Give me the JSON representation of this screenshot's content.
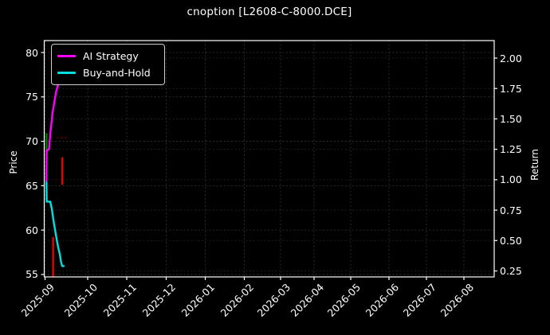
{
  "title": "cnoption [L2608-C-8000.DCE]",
  "legend": {
    "items": [
      {
        "label": "AI Strategy",
        "color": "#ff00ff"
      },
      {
        "label": "Buy-and-Hold",
        "color": "#00e0e0"
      }
    ]
  },
  "axes": {
    "left": {
      "label": "Price",
      "ticks": [
        "80",
        "75",
        "70",
        "65",
        "60",
        "55"
      ]
    },
    "right": {
      "label": "Return",
      "ticks": [
        "2.00",
        "1.75",
        "1.50",
        "1.25",
        "1.00",
        "0.75",
        "0.50",
        "0.25"
      ]
    },
    "x": {
      "ticks": [
        "2025-09",
        "2025-10",
        "2025-11",
        "2025-12",
        "2026-01",
        "2026-02",
        "2026-03",
        "2026-04",
        "2026-05",
        "2026-06",
        "2026-07",
        "2026-08"
      ]
    }
  },
  "chart_data": {
    "type": "line",
    "title": "cnoption [L2608-C-8000.DCE]",
    "ylabel_left": "Price",
    "ylabel_right": "Return",
    "x_axis": "date",
    "x_range": [
      "2025-09-01",
      "2026-08-31"
    ],
    "price_ylim": [
      54.7,
      81.3
    ],
    "return_ylim": [
      0.2,
      2.14
    ],
    "grid": true,
    "legend_position": "upper left",
    "background": "#000000",
    "x_unit": "days since 2025-09-01",
    "series": [
      {
        "name": "AI Strategy",
        "axis": "return",
        "color": "#ff00ff",
        "points": [
          [
            1.0,
            0.99
          ],
          [
            1.2,
            1.24
          ],
          [
            2.8,
            1.25
          ],
          [
            3.7,
            1.38
          ],
          [
            4.5,
            1.46
          ],
          [
            5.3,
            1.55
          ],
          [
            6.2,
            1.61
          ],
          [
            7.0,
            1.67
          ],
          [
            7.9,
            1.73
          ],
          [
            8.7,
            1.76
          ],
          [
            9.6,
            1.8
          ],
          [
            10.7,
            1.84
          ]
        ]
      },
      {
        "name": "Buy-and-Hold",
        "axis": "return",
        "color": "#00e0e0",
        "points": [
          [
            1.0,
            0.99
          ],
          [
            1.2,
            0.82
          ],
          [
            3.7,
            0.82
          ],
          [
            4.8,
            0.76
          ],
          [
            5.9,
            0.67
          ],
          [
            7.0,
            0.59
          ],
          [
            8.2,
            0.51
          ],
          [
            9.3,
            0.44
          ],
          [
            10.4,
            0.39
          ],
          [
            11.2,
            0.33
          ],
          [
            12.1,
            0.29
          ],
          [
            13.2,
            0.29
          ]
        ]
      }
    ],
    "trade_markers": [
      {
        "type": "vline",
        "name": "buy-signal",
        "color": "#008000",
        "day": 1.1,
        "price_from": 68.9,
        "price_to": 70.9,
        "width": 2.2
      },
      {
        "type": "vline",
        "name": "sell-signal",
        "color": "#e60000",
        "day": 5.7,
        "price_from": 54.7,
        "price_to": 59.2,
        "width": 2.4
      },
      {
        "type": "vline",
        "name": "sell-signal",
        "color": "#e60000",
        "day": 12.2,
        "price_from": 65.1,
        "price_to": 68.2,
        "width": 2.4
      },
      {
        "type": "hline",
        "name": "level-line",
        "color": "#7a0000",
        "price": 70.4,
        "day_from": 8.3,
        "day_to": 15.2,
        "width": 1.5
      }
    ]
  }
}
